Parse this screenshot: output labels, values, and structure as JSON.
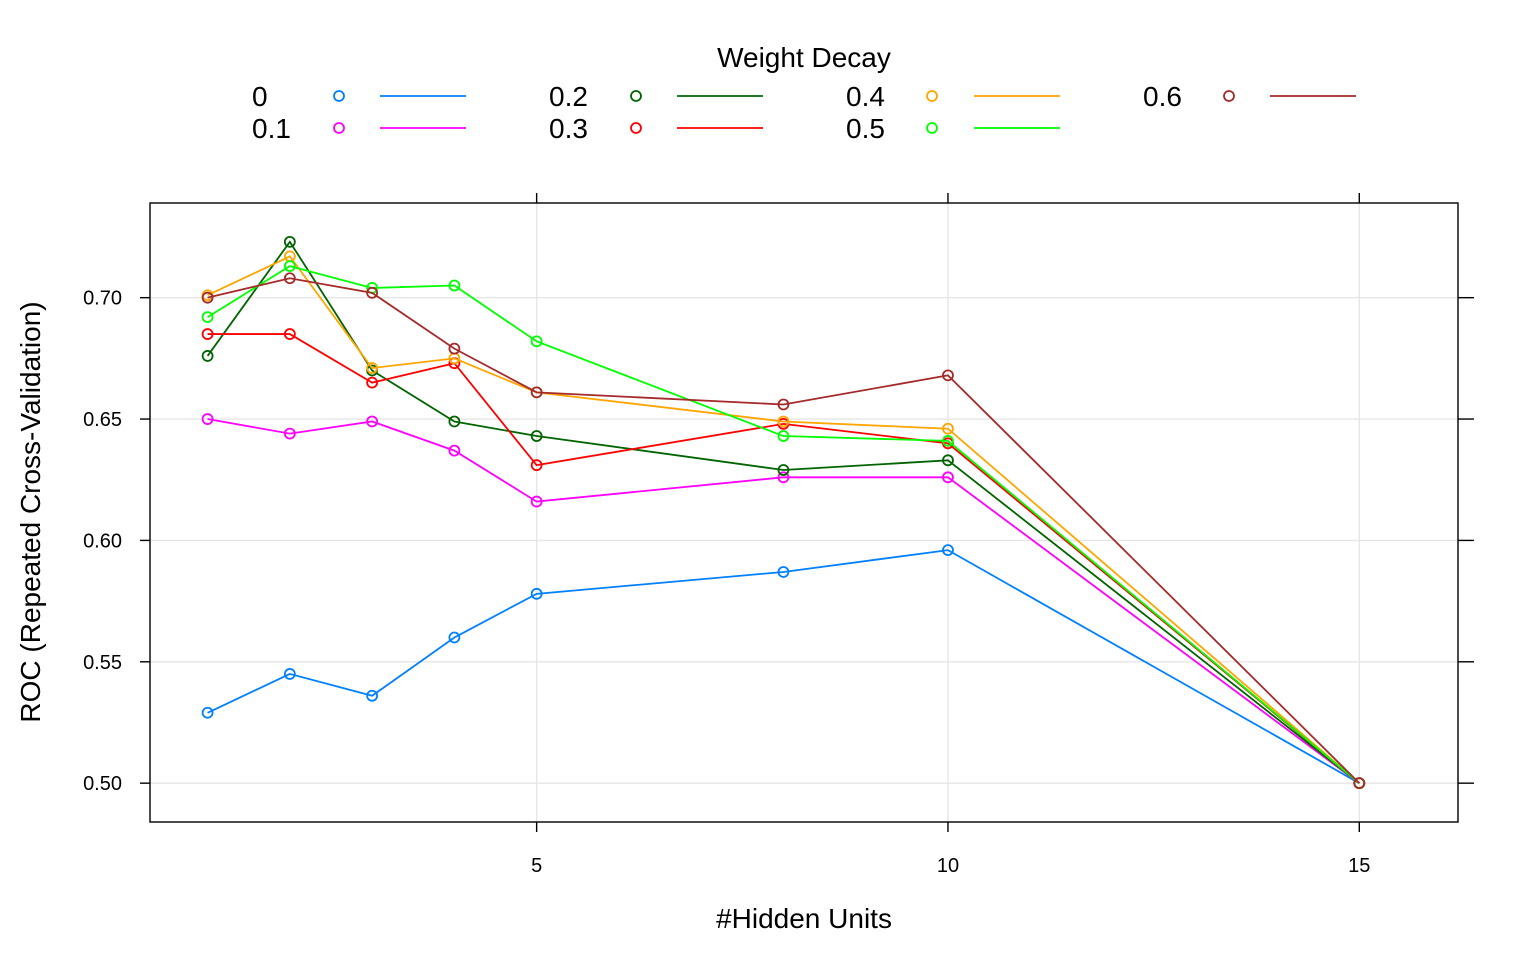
{
  "chart_data": {
    "type": "line",
    "legend_title": "Weight Decay",
    "legend_position": "top",
    "xlabel": "#Hidden Units",
    "ylabel": "ROC (Repeated Cross-Validation)",
    "xlim": [
      0.3,
      16.2
    ],
    "ylim": [
      0.484,
      0.739
    ],
    "x_ticks": [
      5,
      10,
      15
    ],
    "x_tick_labels": [
      "5",
      "10",
      "15"
    ],
    "y_ticks": [
      0.5,
      0.55,
      0.6,
      0.65,
      0.7
    ],
    "y_tick_labels": [
      "0.50",
      "0.55",
      "0.60",
      "0.65",
      "0.70"
    ],
    "grid": true,
    "x": [
      1,
      2,
      3,
      4,
      5,
      8,
      10,
      15
    ],
    "series": [
      {
        "name": "0",
        "color": "#0080ff",
        "values": [
          0.529,
          0.545,
          0.536,
          0.56,
          0.578,
          0.587,
          0.596,
          0.5
        ]
      },
      {
        "name": "0.1",
        "color": "#ff00ff",
        "values": [
          0.65,
          0.644,
          0.649,
          0.637,
          0.616,
          0.626,
          0.626,
          0.5
        ]
      },
      {
        "name": "0.2",
        "color": "#006400",
        "values": [
          0.676,
          0.723,
          0.67,
          0.649,
          0.643,
          0.629,
          0.633,
          0.5
        ]
      },
      {
        "name": "0.3",
        "color": "#ff0000",
        "values": [
          0.685,
          0.685,
          0.665,
          0.673,
          0.631,
          0.648,
          0.64,
          0.5
        ]
      },
      {
        "name": "0.4",
        "color": "#ffa500",
        "values": [
          0.701,
          0.717,
          0.671,
          0.675,
          0.661,
          0.649,
          0.646,
          0.5
        ]
      },
      {
        "name": "0.5",
        "color": "#00ff00",
        "values": [
          0.692,
          0.713,
          0.704,
          0.705,
          0.682,
          0.643,
          0.641,
          0.5
        ]
      },
      {
        "name": "0.6",
        "color": "#a52a2a",
        "values": [
          0.7,
          0.708,
          0.702,
          0.679,
          0.661,
          0.656,
          0.668,
          0.5
        ]
      }
    ]
  }
}
